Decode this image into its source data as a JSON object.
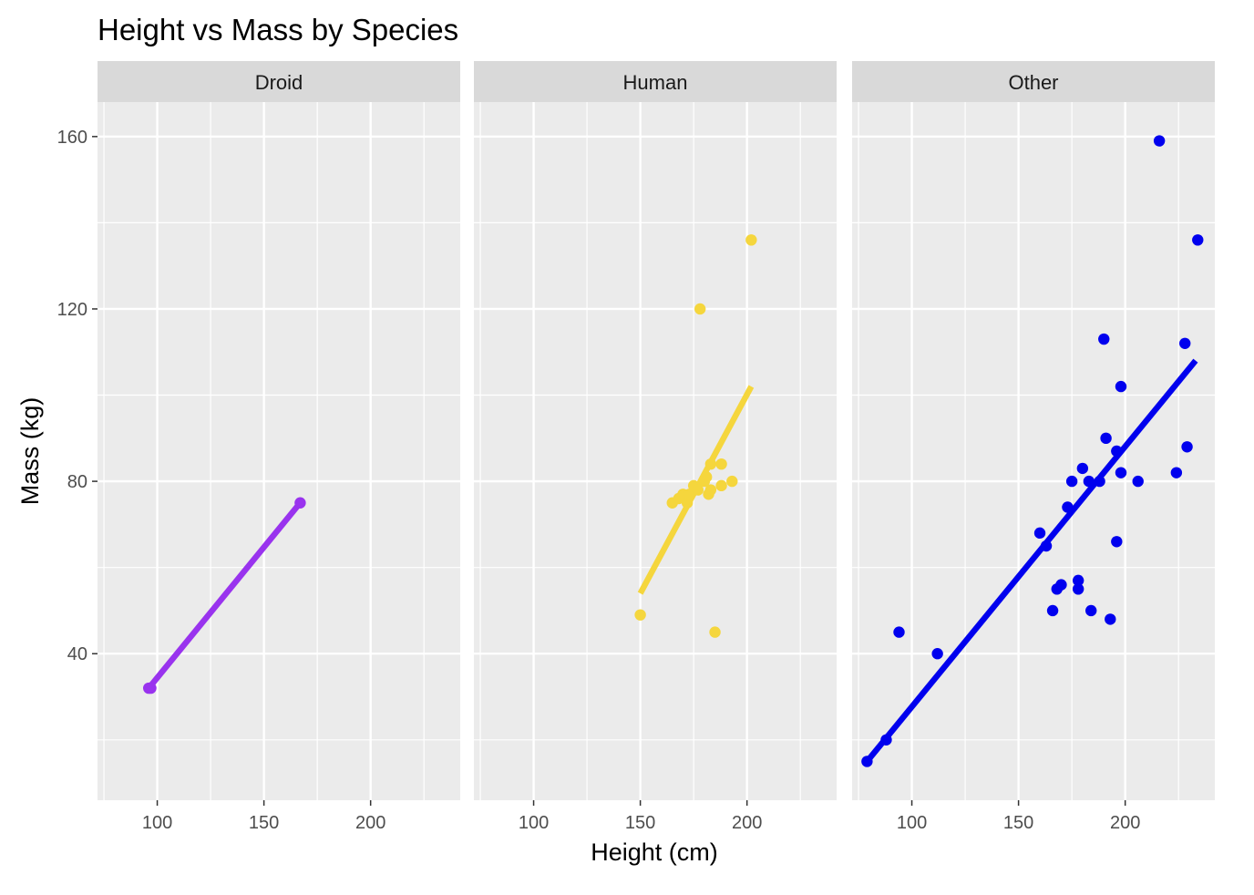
{
  "chart_data": {
    "type": "scatter",
    "title": "Height vs Mass by Species",
    "xlabel": "Height (cm)",
    "ylabel": "Mass (kg)",
    "xlim": [
      72,
      242
    ],
    "ylim": [
      6,
      168
    ],
    "x_ticks": [
      100,
      150,
      200
    ],
    "y_ticks": [
      40,
      80,
      120,
      160
    ],
    "grid": true,
    "legend": "none",
    "facets": [
      {
        "name": "Droid",
        "color": "#9933ee",
        "points": [
          [
            96,
            32
          ],
          [
            97,
            32
          ],
          [
            167,
            75
          ]
        ],
        "trend": {
          "x0": 96,
          "y0": 32,
          "x1": 167,
          "y1": 75
        }
      },
      {
        "name": "Human",
        "color": "#f5d63d",
        "points": [
          [
            150,
            49
          ],
          [
            165,
            75
          ],
          [
            168,
            76
          ],
          [
            170,
            77
          ],
          [
            172,
            75
          ],
          [
            173,
            77
          ],
          [
            175,
            79
          ],
          [
            177,
            78
          ],
          [
            178,
            120
          ],
          [
            180,
            80
          ],
          [
            181,
            81
          ],
          [
            182,
            77
          ],
          [
            183,
            78
          ],
          [
            183,
            84
          ],
          [
            185,
            45
          ],
          [
            188,
            79
          ],
          [
            188,
            84
          ],
          [
            193,
            80
          ],
          [
            202,
            136
          ]
        ],
        "trend": {
          "x0": 150,
          "y0": 54,
          "x1": 202,
          "y1": 102
        }
      },
      {
        "name": "Other",
        "color": "#0000ee",
        "points": [
          [
            79,
            15
          ],
          [
            88,
            20
          ],
          [
            94,
            45
          ],
          [
            112,
            40
          ],
          [
            160,
            68
          ],
          [
            163,
            65
          ],
          [
            166,
            50
          ],
          [
            168,
            55
          ],
          [
            170,
            56
          ],
          [
            173,
            74
          ],
          [
            175,
            80
          ],
          [
            178,
            57
          ],
          [
            178,
            55
          ],
          [
            180,
            83
          ],
          [
            183,
            80
          ],
          [
            184,
            50
          ],
          [
            188,
            80
          ],
          [
            190,
            113
          ],
          [
            191,
            90
          ],
          [
            193,
            48
          ],
          [
            196,
            66
          ],
          [
            196,
            87
          ],
          [
            198,
            102
          ],
          [
            198,
            82
          ],
          [
            206,
            80
          ],
          [
            216,
            159
          ],
          [
            224,
            82
          ],
          [
            228,
            112
          ],
          [
            229,
            88
          ],
          [
            234,
            136
          ]
        ],
        "trend": {
          "x0": 79,
          "y0": 15,
          "x1": 233,
          "y1": 108
        }
      }
    ]
  }
}
